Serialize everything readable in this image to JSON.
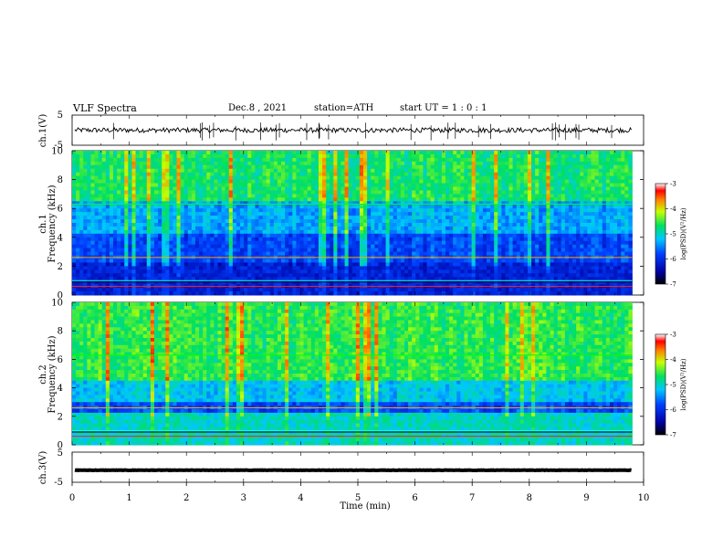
{
  "header": {
    "title": "VLF Spectra",
    "date": "Dec.8 , 2021",
    "station": "station=ATH",
    "start_ut": "start UT =  1 : 0  : 1"
  },
  "colors": {
    "spectrum_low": "#000066",
    "spectrum_mid": "#00e060",
    "spectrum_high": "#ff2000"
  },
  "chart_data": [
    {
      "type": "line",
      "panel": "ch1_waveform",
      "ylabel": "ch.1(V)",
      "ylim": [
        -5,
        5
      ],
      "yticks": [
        "5",
        "-5"
      ],
      "x": [
        0,
        1,
        2,
        3,
        4,
        5,
        6,
        7,
        8,
        9,
        9.8
      ],
      "values": [
        0,
        0,
        0,
        0,
        0,
        0,
        0,
        0,
        0,
        0,
        0
      ]
    },
    {
      "type": "heatmap",
      "panel": "ch1_spectrogram",
      "ylabel": "Frequency (kHz)",
      "channel_label": "ch.1",
      "ylim": [
        0,
        10
      ],
      "yticks": [
        "0",
        "2",
        "4",
        "6",
        "8",
        "10"
      ],
      "colorbar": {
        "label": "log(PSD)(V²/Hz)",
        "range": [
          -7,
          -3
        ],
        "ticks": [
          "-3",
          "-4",
          "-5",
          "-6",
          "-7"
        ]
      }
    },
    {
      "type": "heatmap",
      "panel": "ch2_spectrogram",
      "ylabel": "Frequency (kHz)",
      "channel_label": "ch.2",
      "ylim": [
        0,
        10
      ],
      "yticks": [
        "0",
        "2",
        "4",
        "6",
        "8",
        "10"
      ],
      "colorbar": {
        "label": "log(PSD)(V²/Hz)",
        "range": [
          -7,
          -3
        ],
        "ticks": [
          "-3",
          "-4",
          "-5",
          "-6",
          "-7"
        ]
      }
    },
    {
      "type": "line",
      "panel": "ch3_waveform",
      "ylabel": "ch.3(V)",
      "ylim": [
        -5,
        5
      ],
      "yticks": [
        "5",
        "-5"
      ],
      "x": [
        0,
        1,
        2,
        3,
        4,
        5,
        6,
        7,
        8,
        9,
        9.8
      ],
      "values": [
        -1,
        -1,
        -1,
        -1,
        -1,
        -1,
        -1,
        -1,
        -1,
        -1,
        -1
      ]
    }
  ],
  "xaxis": {
    "label": "Time (min)",
    "ticks": [
      "0",
      "1",
      "2",
      "3",
      "4",
      "5",
      "6",
      "7",
      "8",
      "9",
      "10"
    ],
    "xlim": [
      0,
      10
    ]
  }
}
